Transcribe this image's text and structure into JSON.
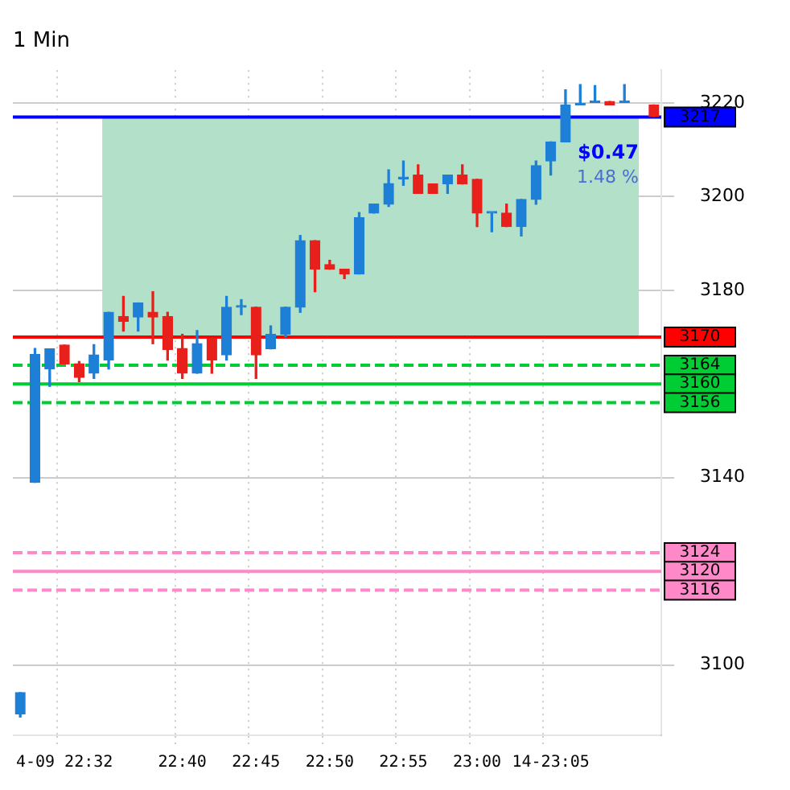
{
  "chart_data": {
    "type": "candlestick",
    "title": "1 Min",
    "categories": [
      null,
      null,
      null,
      "4-09 22:32",
      null,
      null,
      null,
      null,
      null,
      null,
      null,
      "22:40",
      null,
      null,
      null,
      null,
      "22:45",
      null,
      null,
      null,
      null,
      "22:50",
      null,
      null,
      null,
      null,
      "22:55",
      null,
      null,
      null,
      null,
      "23:00",
      null,
      null,
      null,
      null,
      "14-23:05",
      null,
      null,
      null,
      null,
      null,
      null,
      null
    ],
    "ohlc": [
      [
        3089.6,
        3094.1,
        3088.9,
        3094.1
      ],
      [
        3139.0,
        3167.6,
        3139.0,
        3166.3
      ],
      [
        3163.2,
        3167.5,
        3159.5,
        3167.5
      ],
      [
        3168.3,
        3168.3,
        3164.3,
        3164.3
      ],
      [
        3164.3,
        3164.8,
        3160.5,
        3161.4
      ],
      [
        3162.3,
        3168.4,
        3161.2,
        3166.2
      ],
      [
        3165.1,
        3175.3,
        3163.2,
        3175.3
      ],
      [
        3174.4,
        3178.7,
        3171.3,
        3173.4
      ],
      [
        3174.3,
        3177.3,
        3171.3,
        3177.3
      ],
      [
        3175.3,
        3179.7,
        3168.6,
        3174.3
      ],
      [
        3174.4,
        3175.3,
        3165.1,
        3167.4
      ],
      [
        3167.6,
        3170.6,
        3161.2,
        3162.3
      ],
      [
        3162.3,
        3171.4,
        3162.3,
        3168.6
      ],
      [
        3169.7,
        3169.7,
        3162.3,
        3165.1
      ],
      [
        3166.2,
        3178.7,
        3165.1,
        3176.4
      ],
      [
        3176.4,
        3178.0,
        3174.8,
        3176.4
      ],
      [
        3176.4,
        3176.4,
        3161.2,
        3166.2
      ],
      [
        3167.5,
        3172.4,
        3167.5,
        3170.6
      ],
      [
        3170.6,
        3176.4,
        3170.0,
        3176.4
      ],
      [
        3176.4,
        3191.7,
        3175.3,
        3190.6
      ],
      [
        3190.6,
        3190.6,
        3179.7,
        3184.5
      ],
      [
        3185.5,
        3186.4,
        3184.5,
        3184.5
      ],
      [
        3184.5,
        3184.5,
        3182.5,
        3183.5
      ],
      [
        3183.5,
        3196.6,
        3183.5,
        3195.5
      ],
      [
        3196.5,
        3198.4,
        3196.5,
        3198.4
      ],
      [
        3198.4,
        3205.7,
        3197.9,
        3202.8
      ],
      [
        3203.8,
        3207.6,
        3202.4,
        3203.8
      ],
      [
        3204.6,
        3206.8,
        3200.7,
        3200.7
      ],
      [
        3202.7,
        3202.7,
        3200.7,
        3200.7
      ],
      [
        3202.7,
        3204.6,
        3200.7,
        3204.6
      ],
      [
        3204.6,
        3206.8,
        3202.7,
        3202.7
      ],
      [
        3203.7,
        3203.7,
        3193.6,
        3196.5
      ],
      [
        3196.5,
        3196.5,
        3192.5,
        3196.5
      ],
      [
        3196.5,
        3198.4,
        3193.6,
        3193.6
      ],
      [
        3193.6,
        3199.4,
        3191.6,
        3199.4
      ],
      [
        3199.4,
        3207.6,
        3198.4,
        3206.6
      ],
      [
        3207.6,
        3211.7,
        3204.6,
        3211.7
      ],
      [
        3211.7,
        3222.8,
        3211.7,
        3219.6
      ],
      [
        3219.6,
        3223.9,
        3219.6,
        3219.6
      ],
      [
        3220.1,
        3223.7,
        3220.1,
        3220.1
      ],
      [
        3220.3,
        3220.3,
        3219.6,
        3219.6
      ],
      [
        3220.1,
        3223.9,
        3220.1,
        3220.1
      ],
      null,
      [
        3219.6,
        3219.6,
        3217.1,
        3217.1
      ]
    ],
    "colors": [
      "#1e7fd6",
      "#1e7fd6",
      "#1e7fd6",
      "#e8201c",
      "#e8201c",
      "#1e7fd6",
      "#1e7fd6",
      "#e8201c",
      "#1e7fd6",
      "#e8201c",
      "#e8201c",
      "#e8201c",
      "#1e7fd6",
      "#e8201c",
      "#1e7fd6",
      "#1e7fd6",
      "#e8201c",
      "#1e7fd6",
      "#1e7fd6",
      "#1e7fd6",
      "#e8201c",
      "#e8201c",
      "#e8201c",
      "#1e7fd6",
      "#1e7fd6",
      "#1e7fd6",
      "#1e7fd6",
      "#e8201c",
      "#e8201c",
      "#1e7fd6",
      "#e8201c",
      "#e8201c",
      "#1e7fd6",
      "#e8201c",
      "#1e7fd6",
      "#1e7fd6",
      "#1e7fd6",
      "#1e7fd6",
      "#1e7fd6",
      "#1e7fd6",
      "#e8201c",
      "#1e7fd6",
      "#1e7fd6",
      "#e8201c"
    ],
    "ylim": [
      3085,
      3227
    ],
    "yticks": [
      3100,
      3140,
      3180,
      3200,
      3220
    ],
    "ref_lines": [
      {
        "axis": "y",
        "value": 3217,
        "label": "3217",
        "color": "#0000ff"
      },
      {
        "axis": "y",
        "value": 3170,
        "label": "3170",
        "color": "#ff0000"
      },
      {
        "axis": "y",
        "value": 3164,
        "label": "3164",
        "color": "#00cc33",
        "line_style": "dashed"
      },
      {
        "axis": "y",
        "value": 3160,
        "label": "3160",
        "color": "#00cc33"
      },
      {
        "axis": "y",
        "value": 3156,
        "label": "3156",
        "color": "#00cc33",
        "line_style": "dashed"
      },
      {
        "axis": "y",
        "value": 3124,
        "label": "3124",
        "color": "#ff88c8",
        "line_style": "dashed"
      },
      {
        "axis": "y",
        "value": 3120,
        "label": "3120",
        "color": "#ff88c8"
      },
      {
        "axis": "y",
        "value": 3116,
        "label": "3116",
        "color": "#ff88c8",
        "line_style": "dashed"
      }
    ],
    "bands": [
      {
        "axis": "y",
        "from": 3170,
        "to": 3217,
        "color": "#b2e0c8"
      }
    ],
    "annotations": [
      "$0.47",
      "1.48 %"
    ],
    "grid": true,
    "legend": false
  }
}
